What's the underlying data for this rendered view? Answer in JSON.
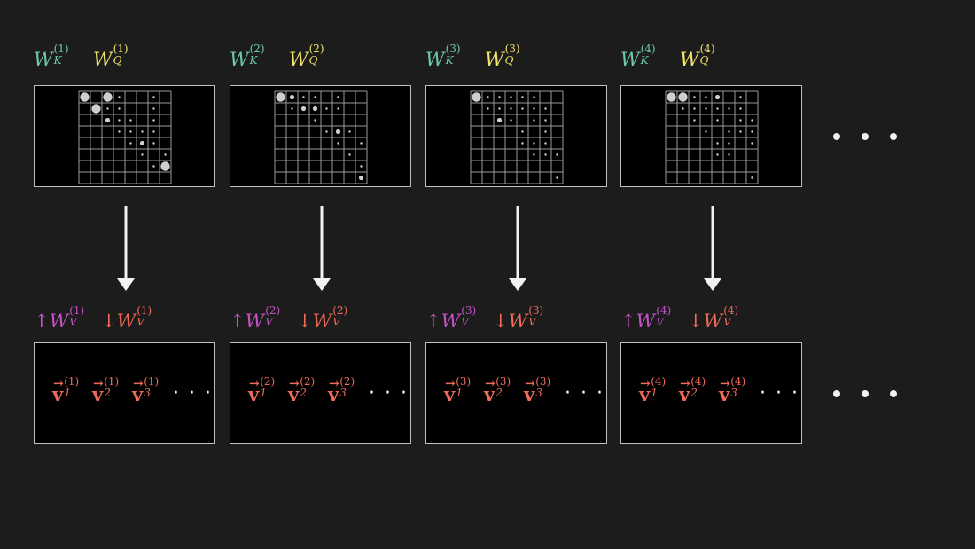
{
  "colors": {
    "wk": "#6cc9a6",
    "wq": "#f0e26a",
    "up": "#c452c4",
    "down": "#f06a5a",
    "grid": "#9a9a9a",
    "dot": "#cfcfcf"
  },
  "heads": [
    {
      "idx": "(1)",
      "wk": "W",
      "wk_sub": "K",
      "wq": "W",
      "wq_sub": "Q",
      "up": "↑W",
      "up_sub": "V",
      "down": "↓W",
      "down_sub": "V",
      "vec_base": "v",
      "vec_subs": [
        "1",
        "2",
        "3"
      ],
      "ellipsis": "· · ·",
      "weights": [
        [
          3,
          0,
          3,
          1,
          0,
          0,
          1,
          0
        ],
        [
          0,
          3,
          1,
          1,
          0,
          0,
          1,
          0
        ],
        [
          0,
          0,
          2,
          1,
          1,
          0,
          1,
          0
        ],
        [
          0,
          0,
          0,
          1,
          1,
          1,
          1,
          0
        ],
        [
          0,
          0,
          0,
          0,
          1,
          2,
          1,
          0
        ],
        [
          0,
          0,
          0,
          0,
          0,
          1,
          0,
          1
        ],
        [
          0,
          0,
          0,
          0,
          0,
          0,
          1,
          3
        ],
        [
          0,
          0,
          0,
          0,
          0,
          0,
          0,
          0
        ]
      ]
    },
    {
      "idx": "(2)",
      "wk": "W",
      "wk_sub": "K",
      "wq": "W",
      "wq_sub": "Q",
      "up": "↑W",
      "up_sub": "V",
      "down": "↓W",
      "down_sub": "V",
      "vec_base": "v",
      "vec_subs": [
        "1",
        "2",
        "3"
      ],
      "ellipsis": "· · ·",
      "weights": [
        [
          3,
          2,
          1,
          1,
          0,
          1,
          0,
          0
        ],
        [
          0,
          1,
          2,
          2,
          1,
          1,
          0,
          0
        ],
        [
          0,
          0,
          0,
          1,
          0,
          0,
          0,
          0
        ],
        [
          0,
          0,
          0,
          0,
          1,
          2,
          1,
          0
        ],
        [
          0,
          0,
          0,
          0,
          0,
          1,
          0,
          1
        ],
        [
          0,
          0,
          0,
          0,
          0,
          0,
          1,
          0
        ],
        [
          0,
          0,
          0,
          0,
          0,
          0,
          0,
          1
        ],
        [
          0,
          0,
          0,
          0,
          0,
          0,
          0,
          2
        ]
      ]
    },
    {
      "idx": "(3)",
      "wk": "W",
      "wk_sub": "K",
      "wq": "W",
      "wq_sub": "Q",
      "up": "↑W",
      "up_sub": "V",
      "down": "↓W",
      "down_sub": "V",
      "vec_base": "v",
      "vec_subs": [
        "1",
        "2",
        "3"
      ],
      "ellipsis": "· · ·",
      "weights": [
        [
          3,
          1,
          1,
          1,
          1,
          1,
          0,
          0
        ],
        [
          0,
          1,
          1,
          1,
          1,
          1,
          1,
          0
        ],
        [
          0,
          0,
          2,
          1,
          0,
          1,
          1,
          0
        ],
        [
          0,
          0,
          0,
          0,
          1,
          0,
          1,
          0
        ],
        [
          0,
          0,
          0,
          0,
          1,
          1,
          1,
          0
        ],
        [
          0,
          0,
          0,
          0,
          0,
          1,
          1,
          1
        ],
        [
          0,
          0,
          0,
          0,
          0,
          0,
          0,
          0
        ],
        [
          0,
          0,
          0,
          0,
          0,
          0,
          0,
          1
        ]
      ]
    },
    {
      "idx": "(4)",
      "wk": "W",
      "wk_sub": "K",
      "wq": "W",
      "wq_sub": "Q",
      "up": "↑W",
      "up_sub": "V",
      "down": "↓W",
      "down_sub": "V",
      "vec_base": "v",
      "vec_subs": [
        "1",
        "2",
        "3"
      ],
      "ellipsis": "· · ·",
      "weights": [
        [
          3,
          3,
          1,
          1,
          2,
          0,
          1,
          0
        ],
        [
          0,
          1,
          1,
          1,
          1,
          1,
          1,
          0
        ],
        [
          0,
          0,
          1,
          0,
          1,
          0,
          1,
          1
        ],
        [
          0,
          0,
          0,
          1,
          0,
          1,
          1,
          1
        ],
        [
          0,
          0,
          0,
          0,
          1,
          1,
          0,
          1
        ],
        [
          0,
          0,
          0,
          0,
          1,
          1,
          0,
          0
        ],
        [
          0,
          0,
          0,
          0,
          0,
          0,
          0,
          0
        ],
        [
          0,
          0,
          0,
          0,
          0,
          0,
          0,
          1
        ]
      ]
    }
  ]
}
